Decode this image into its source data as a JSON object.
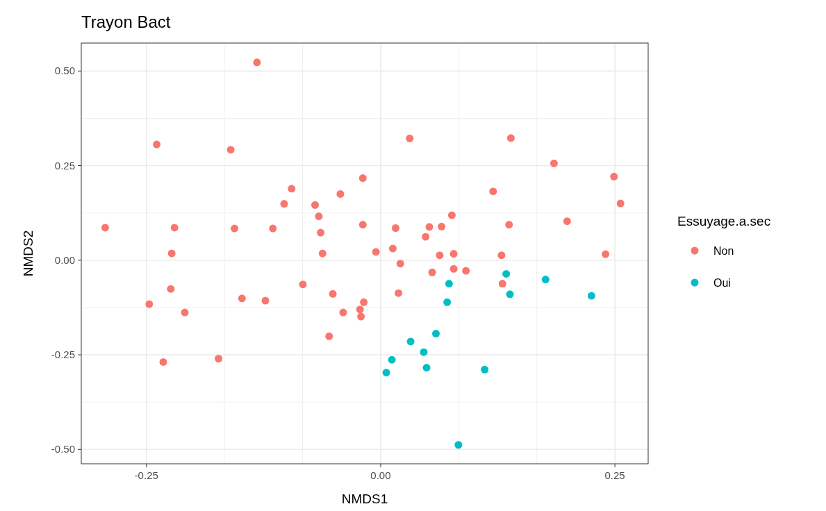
{
  "chart_data": {
    "type": "scatter",
    "title": "Trayon Bact",
    "xlabel": "NMDS1",
    "ylabel": "NMDS2",
    "legend_title": "Essuyage.a.sec",
    "legend": "right",
    "grid": true,
    "marker": "circle",
    "xlim": [
      -0.3195,
      0.2855
    ],
    "ylim": [
      -0.538,
      0.574
    ],
    "xticks": [
      {
        "value": -0.25,
        "label": "-0.25"
      },
      {
        "value": 0,
        "label": "0.00"
      },
      {
        "value": 0.25,
        "label": "0.25"
      }
    ],
    "yticks": [
      {
        "value": -0.5,
        "label": "-0.50"
      },
      {
        "value": -0.25,
        "label": "-0.25"
      },
      {
        "value": 0,
        "label": "0.00"
      },
      {
        "value": 0.25,
        "label": "0.25"
      },
      {
        "value": 0.5,
        "label": "0.50"
      }
    ],
    "series": [
      {
        "name": "Non",
        "color": "#f8766d",
        "x": [
          -0.132,
          -0.239,
          -0.16,
          -0.095,
          -0.043,
          -0.019,
          -0.103,
          -0.07,
          -0.066,
          -0.294,
          -0.22,
          -0.156,
          -0.115,
          -0.064,
          -0.019,
          -0.223,
          -0.062,
          0.031,
          0.139,
          0.185,
          0.249,
          0.12,
          0.256,
          0.076,
          0.199,
          0.137,
          0.016,
          0.052,
          0.065,
          0.048,
          0.013,
          -0.005,
          0.063,
          0.078,
          0.129,
          0.24,
          -0.224,
          -0.247,
          -0.209,
          -0.148,
          -0.123,
          -0.083,
          -0.051,
          -0.018,
          -0.04,
          -0.022,
          -0.021,
          -0.055,
          -0.232,
          -0.173,
          0.021,
          0.055,
          0.078,
          0.091,
          0.13,
          0.019
        ],
        "values": [
          0.523,
          0.306,
          0.292,
          0.189,
          0.175,
          0.217,
          0.149,
          0.146,
          0.116,
          0.086,
          0.086,
          0.084,
          0.084,
          0.073,
          0.094,
          0.018,
          0.018,
          0.322,
          0.323,
          0.256,
          0.221,
          0.182,
          0.15,
          0.119,
          0.103,
          0.094,
          0.085,
          0.088,
          0.089,
          0.062,
          0.031,
          0.022,
          0.013,
          0.017,
          0.013,
          0.016,
          -0.076,
          -0.116,
          -0.138,
          -0.101,
          -0.107,
          -0.064,
          -0.089,
          -0.111,
          -0.138,
          -0.13,
          -0.149,
          -0.201,
          -0.269,
          -0.26,
          -0.009,
          -0.032,
          -0.023,
          -0.028,
          -0.062,
          -0.087
        ]
      },
      {
        "name": "Oui",
        "color": "#00bfc4",
        "x": [
          0.134,
          0.176,
          0.073,
          0.138,
          0.225,
          0.071,
          0.059,
          0.032,
          0.046,
          0.012,
          0.049,
          0.111,
          0.006,
          0.083
        ],
        "values": [
          -0.036,
          -0.051,
          -0.062,
          -0.09,
          -0.094,
          -0.111,
          -0.194,
          -0.215,
          -0.243,
          -0.263,
          -0.284,
          -0.289,
          -0.297,
          -0.488
        ]
      }
    ]
  }
}
